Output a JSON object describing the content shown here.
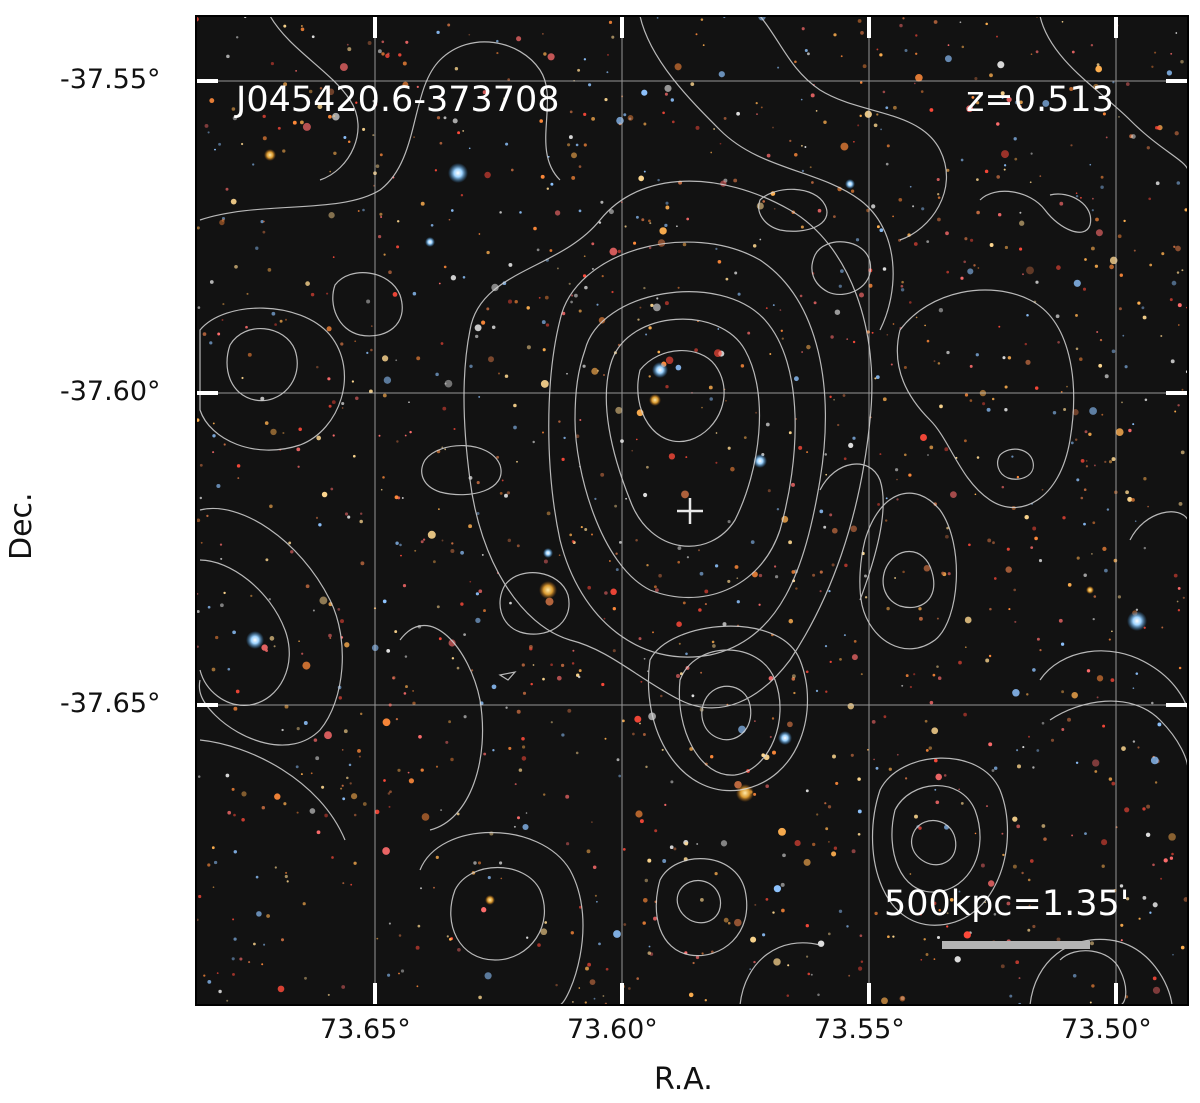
{
  "figure": {
    "object_name": "J045420.6-373708",
    "redshift_label": "z=0.513",
    "scale_bar_label": "500kpc=1.35'",
    "x_axis_title": "R.A.",
    "y_axis_title": "Dec.",
    "x_ticks": [
      "73.65°",
      "73.60°",
      "73.55°",
      "73.50°"
    ],
    "y_ticks": [
      "-37.55°",
      "-37.60°",
      "-37.65°"
    ],
    "colors": {
      "sky_background": "#121212",
      "contour": "#d7d7d7",
      "grid": "#cfcfcf",
      "scale_bar": "#b4b4b4",
      "text_overlay": "#ffffff"
    }
  }
}
